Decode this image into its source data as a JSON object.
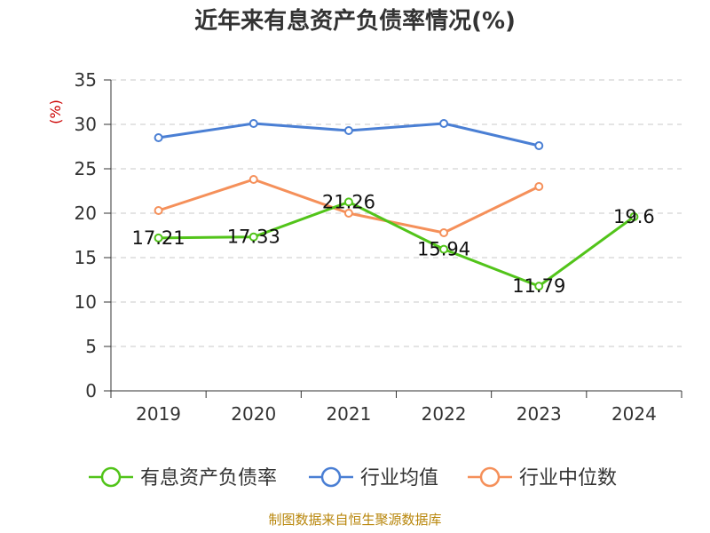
{
  "chart_data": {
    "type": "line",
    "title": "近年来有息资产负债率情况(%)",
    "ylabel": "(%)",
    "xlabel": "",
    "categories": [
      "2019",
      "2020",
      "2021",
      "2022",
      "2023",
      "2024"
    ],
    "ylim": [
      0,
      35
    ],
    "yticks": [
      0,
      5,
      10,
      15,
      20,
      25,
      30,
      35
    ],
    "grid": true,
    "legend_position": "bottom",
    "series": [
      {
        "name": "有息资产负债率",
        "color": "#52c41a",
        "values": [
          17.21,
          17.33,
          21.26,
          15.94,
          11.79,
          19.6
        ],
        "labels": [
          "17.21",
          "17.33",
          "21.26",
          "15.94",
          "11.79",
          "19.6"
        ]
      },
      {
        "name": "行业均值",
        "color": "#4a7fd4",
        "values": [
          28.5,
          30.1,
          29.3,
          30.1,
          27.6,
          null
        ]
      },
      {
        "name": "行业中位数",
        "color": "#f5905a",
        "values": [
          20.3,
          23.8,
          20.0,
          17.8,
          23.0,
          null
        ]
      }
    ],
    "source": "制图数据来自恒生聚源数据库"
  }
}
